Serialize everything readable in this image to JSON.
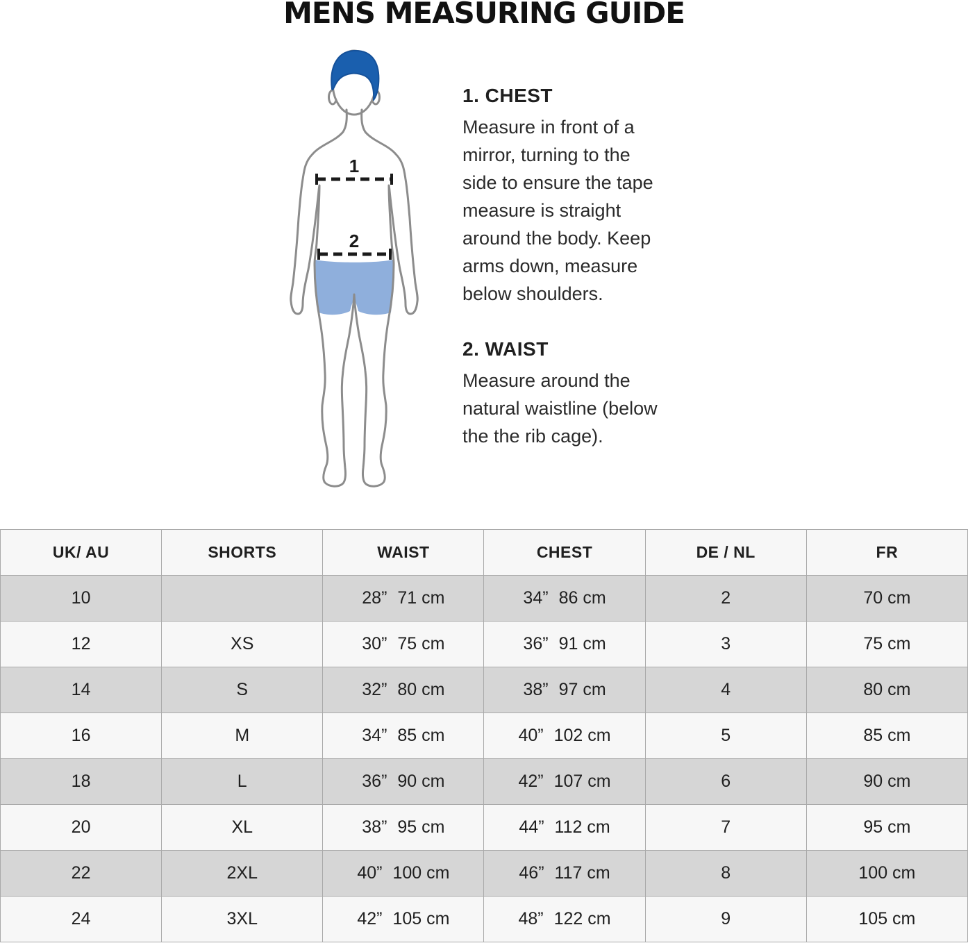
{
  "title": "MENS MEASURING GUIDE",
  "instructions": [
    {
      "heading": "1. CHEST",
      "body": "Measure in front of a\nmirror, turning to the\nside to ensure the tape\nmeasure is straight\naround the body. Keep\narms down, measure\nbelow shoulders."
    },
    {
      "heading": "2. WAIST",
      "body": "Measure around the\nnatural waistline (below\nthe the rib cage)."
    }
  ],
  "figure": {
    "chest_label": "1",
    "waist_label": "2"
  },
  "colors": {
    "hair": "#1a5fae",
    "shorts": "#8fafdc",
    "outline": "#8c8c8c",
    "row_gray": "#d6d6d6",
    "row_light": "#f7f7f7",
    "border": "#a9a9a9",
    "text": "#1f1f1f"
  },
  "table": {
    "columns": [
      "UK/ AU",
      "SHORTS",
      "WAIST",
      "CHEST",
      "DE / NL",
      "FR"
    ],
    "rows": [
      {
        "uk_au": "10",
        "shorts": "",
        "waist_in": "28”",
        "waist_cm": "71 cm",
        "chest_in": "34”",
        "chest_cm": "86 cm",
        "de_nl": "2",
        "fr": "70 cm"
      },
      {
        "uk_au": "12",
        "shorts": "XS",
        "waist_in": "30”",
        "waist_cm": "75 cm",
        "chest_in": "36”",
        "chest_cm": "91 cm",
        "de_nl": "3",
        "fr": "75 cm"
      },
      {
        "uk_au": "14",
        "shorts": "S",
        "waist_in": "32”",
        "waist_cm": "80 cm",
        "chest_in": "38”",
        "chest_cm": "97 cm",
        "de_nl": "4",
        "fr": "80 cm"
      },
      {
        "uk_au": "16",
        "shorts": "M",
        "waist_in": "34”",
        "waist_cm": "85 cm",
        "chest_in": "40”",
        "chest_cm": "102 cm",
        "de_nl": "5",
        "fr": "85 cm"
      },
      {
        "uk_au": "18",
        "shorts": "L",
        "waist_in": "36”",
        "waist_cm": "90 cm",
        "chest_in": "42”",
        "chest_cm": "107 cm",
        "de_nl": "6",
        "fr": "90 cm"
      },
      {
        "uk_au": "20",
        "shorts": "XL",
        "waist_in": "38”",
        "waist_cm": "95 cm",
        "chest_in": "44”",
        "chest_cm": "112 cm",
        "de_nl": "7",
        "fr": "95 cm"
      },
      {
        "uk_au": "22",
        "shorts": "2XL",
        "waist_in": "40”",
        "waist_cm": "100 cm",
        "chest_in": "46”",
        "chest_cm": "117 cm",
        "de_nl": "8",
        "fr": "100 cm"
      },
      {
        "uk_au": "24",
        "shorts": "3XL",
        "waist_in": "42”",
        "waist_cm": "105 cm",
        "chest_in": "48”",
        "chest_cm": "122 cm",
        "de_nl": "9",
        "fr": "105 cm"
      }
    ]
  }
}
